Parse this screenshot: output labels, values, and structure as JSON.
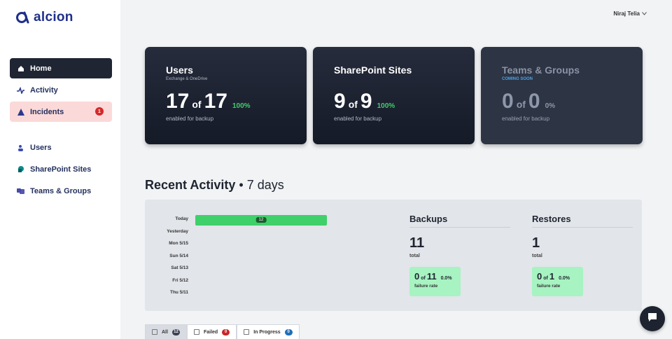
{
  "brand": {
    "name": "alcion",
    "color": "#1f2f8a"
  },
  "user_menu": {
    "name": "Niraj Telia",
    "icon": "chevron-down-icon"
  },
  "sidebar": {
    "primary": [
      {
        "label": "Home",
        "icon": "home-icon"
      },
      {
        "label": "Activity",
        "icon": "activity-icon"
      },
      {
        "label": "Incidents",
        "icon": "warning-icon",
        "badge": "1"
      }
    ],
    "secondary": [
      {
        "label": "Users",
        "icon": "users-icon"
      },
      {
        "label": "SharePoint Sites",
        "icon": "sharepoint-icon"
      },
      {
        "label": "Teams & Groups",
        "icon": "teams-icon"
      }
    ]
  },
  "cards": [
    {
      "title": "Users",
      "subtitle": "Exchange & OneDrive",
      "value": "17",
      "of": "of",
      "total": "17",
      "percent": "100%",
      "footer": "enabled for backup"
    },
    {
      "title": "SharePoint Sites",
      "subtitle": "",
      "value": "9",
      "of": "of",
      "total": "9",
      "percent": "100%",
      "footer": "enabled for backup"
    },
    {
      "title": "Teams & Groups",
      "subtitle": "COMING SOON",
      "value": "0",
      "of": "of",
      "total": "0",
      "percent": "0%",
      "footer": "enabled for backup"
    }
  ],
  "recent_activity": {
    "title": "Recent Activity",
    "period": "• 7 days",
    "days": [
      "Today",
      "Yesterday",
      "Mon 5/15",
      "Sun 5/14",
      "Sat 5/13",
      "Fri 5/12",
      "Thu 5/11"
    ],
    "today_count": "12",
    "backups": {
      "title": "Backups",
      "total": "11",
      "total_label": "total",
      "fail_value": "0",
      "fail_of": "of",
      "fail_total": "11",
      "fail_pct": "0.0%",
      "fail_label": "failure rate"
    },
    "restores": {
      "title": "Restores",
      "total": "1",
      "total_label": "total",
      "fail_value": "0",
      "fail_of": "of",
      "fail_total": "1",
      "fail_pct": "0.0%",
      "fail_label": "failure rate"
    }
  },
  "filter_tabs": [
    {
      "label": "All",
      "count": "12",
      "color": "#3b4150"
    },
    {
      "label": "Failed",
      "count": "0",
      "color": "#c62828"
    },
    {
      "label": "In Progress",
      "count": "0",
      "color": "#1f6fb8"
    }
  ],
  "chat": {
    "icon": "chat-icon"
  }
}
